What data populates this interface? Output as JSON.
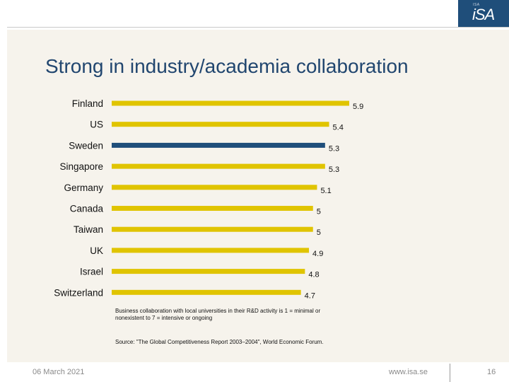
{
  "slide": {
    "title": "Strong in industry/academia collaboration",
    "note": "Business collaboration with local universities in their R&D activity is 1 = minimal or nonexistent to 7 = intensive or ongoing",
    "source": "Source: \"The Global Competitiveness Report 2003–2004\", World Economic Forum.",
    "logo_text": "iSA",
    "logo_small_text": "ISA"
  },
  "footer": {
    "date": "06 March 2021",
    "url": "www.isa.se",
    "page_number": "16"
  },
  "colors": {
    "bar_default": "#e0c400",
    "bar_highlight": "#1f4e7a",
    "title": "#21466f",
    "panel_background": "#f6f3ec",
    "logo_background": "#1f4e7a"
  },
  "chart_data": {
    "type": "bar",
    "orientation": "horizontal",
    "categories": [
      "Finland",
      "US",
      "Sweden",
      "Singapore",
      "Germany",
      "Canada",
      "Taiwan",
      "UK",
      "Israel",
      "Switzerland"
    ],
    "values": [
      5.9,
      5.4,
      5.3,
      5.3,
      5.1,
      5,
      5,
      4.9,
      4.8,
      4.7
    ],
    "value_labels": [
      "5.9",
      "5.4",
      "5.3",
      "5.3",
      "5.1",
      "5",
      "5",
      "4.9",
      "4.8",
      "4.7"
    ],
    "highlight": "Sweden",
    "xlim": [
      0,
      5.9
    ],
    "grid": false,
    "legend": "none"
  }
}
